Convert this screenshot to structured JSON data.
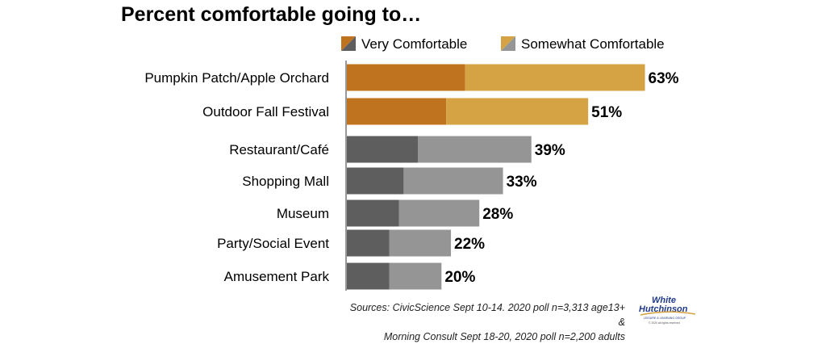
{
  "chart_data": {
    "type": "bar",
    "orientation": "horizontal",
    "stacked": true,
    "title": "Percent comfortable going to…",
    "xlabel": "",
    "ylabel": "",
    "xlim": [
      0,
      67
    ],
    "grid": false,
    "legend_position": "top",
    "categories": [
      "Pumpkin Patch/Apple Orchard",
      "Outdoor Fall Festival",
      "Restaurant/Café",
      "Shopping Mall",
      "Museum",
      "Party/Social Event",
      "Amusement Park"
    ],
    "totals": [
      63,
      51,
      39,
      33,
      28,
      22,
      20
    ],
    "total_labels": [
      "63%",
      "51%",
      "39%",
      "33%",
      "28%",
      "22%",
      "20%"
    ],
    "highlighted_categories": [
      "Pumpkin Patch/Apple Orchard",
      "Outdoor Fall Festival"
    ],
    "series": [
      {
        "name": "Very Comfortable",
        "values": [
          25,
          21,
          15,
          12,
          11,
          9,
          9
        ]
      },
      {
        "name": "Somewhat Comfortable",
        "values": [
          38,
          30,
          24,
          21,
          17,
          13,
          11
        ]
      }
    ],
    "colors": {
      "outdoor_very": "#c0731f",
      "outdoor_somewhat": "#d5a344",
      "indoor_very": "#5e5e5e",
      "indoor_somewhat": "#959595"
    }
  },
  "sources": {
    "line1": "Sources: CivicScience Sept 10-14. 2020 poll n=3,313 age13+ &",
    "line2": "Morning Consult Sept 18-20, 2020 poll n=2,200 adults"
  },
  "logo": {
    "line1": "White",
    "line2": "Hutchinson",
    "tagline": "LEISURE & LEARNING GROUP",
    "copyright": "© 2020 all rights reserved",
    "color": "#1f3a8a"
  }
}
